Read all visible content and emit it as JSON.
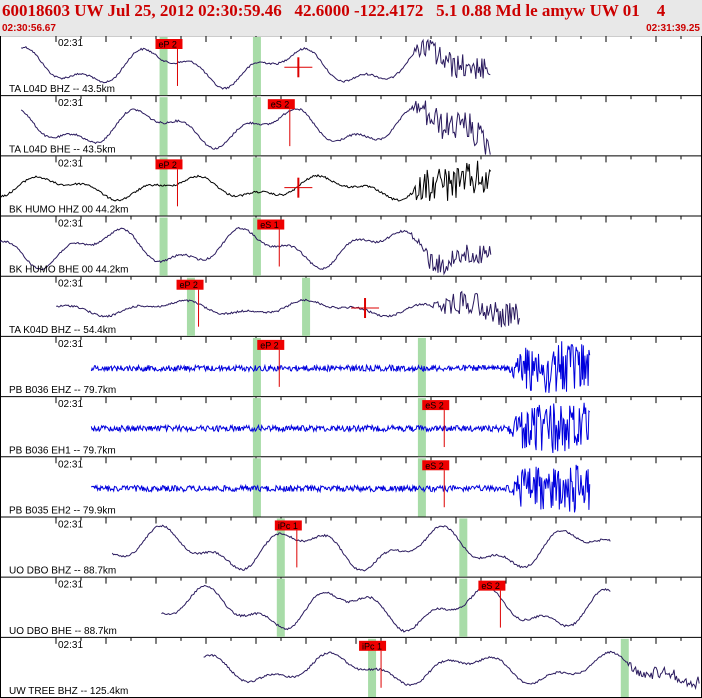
{
  "header": {
    "title": "60018603 UW Jul 25, 2012 02:30:59.46   42.6000 -122.4172   5.1 0.88 Md le amyw UW 01    4",
    "start_time": "02:30:56.67",
    "end_time": "02:31:39.25"
  },
  "colors": {
    "header_bg": "#e8e8e8",
    "header_text": "#cc0000",
    "pick_box": "#ee0000",
    "pick_line": "#dd0000",
    "window_band": "#a8dca8",
    "trace_purple": "#2a1a5e",
    "trace_black": "#000000",
    "trace_blue": "#0000dd",
    "grid": "#000000"
  },
  "chart_data": {
    "type": "line",
    "description": "Seismogram record section: 11 traces versus time",
    "x_unit": "time (02:30:56.67 – 02:31:39.25)",
    "time_tick_label": "02:31",
    "traces": [
      {
        "label": "TA L04D BHZ -- 43.5km",
        "color": "purple",
        "style": "lowfreq",
        "amp": 20,
        "signal_start": 0.03,
        "signal_end": 0.7,
        "noise_start": 0.58,
        "noise_amp": 14,
        "picks": [
          {
            "label": "eP 2",
            "t": 0.24
          }
        ],
        "bands": [
          0.233,
          0.366
        ],
        "extra_marker": 0.425
      },
      {
        "label": "TA L04D BHE -- 43.5km",
        "color": "purple",
        "style": "lowfreq",
        "amp": 20,
        "signal_start": 0.03,
        "signal_end": 0.7,
        "noise_start": 0.58,
        "noise_amp": 16,
        "picks": [
          {
            "label": "eS 2",
            "t": 0.4
          }
        ],
        "bands": [
          0.233,
          0.366
        ]
      },
      {
        "label": "BK HUMO HHZ 00 44.2km",
        "color": "black",
        "style": "lowfreq",
        "amp": 12,
        "signal_start": 0.0,
        "signal_end": 0.7,
        "noise_start": 0.58,
        "noise_amp": 20,
        "picks": [
          {
            "label": "eP 2",
            "t": 0.24
          }
        ],
        "bands": [
          0.233,
          0.366
        ],
        "extra_marker": 0.425
      },
      {
        "label": "BK HUMO BHE 00 44.2km",
        "color": "purple",
        "style": "lowfreq",
        "amp": 20,
        "signal_start": 0.0,
        "signal_end": 0.7,
        "noise_start": 0.58,
        "noise_amp": 12,
        "picks": [
          {
            "label": "eS 1",
            "t": 0.385
          }
        ],
        "bands": [
          0.233,
          0.366
        ]
      },
      {
        "label": "TA K04D BHZ -- 54.4km",
        "color": "purple",
        "style": "lowfreq",
        "amp": 8,
        "signal_start": 0.08,
        "signal_end": 0.74,
        "noise_start": 0.61,
        "noise_amp": 14,
        "picks": [
          {
            "label": "eP 2",
            "t": 0.27
          }
        ],
        "bands": [
          0.272,
          0.436
        ],
        "extra_marker": 0.52
      },
      {
        "label": "PB B036 EHZ -- 79.7km",
        "color": "blue",
        "style": "highfreq",
        "amp": 3,
        "signal_start": 0.13,
        "signal_end": 0.84,
        "noise_start": 0.72,
        "noise_amp": 26,
        "picks": [
          {
            "label": "eP 2",
            "t": 0.385
          }
        ],
        "bands": [
          0.366,
          0.601
        ]
      },
      {
        "label": "PB B036 EH1 -- 79.7km",
        "color": "blue",
        "style": "highfreq",
        "amp": 3,
        "signal_start": 0.13,
        "signal_end": 0.84,
        "noise_start": 0.72,
        "noise_amp": 26,
        "picks": [
          {
            "label": "eS 2",
            "t": 0.62
          }
        ],
        "bands": [
          0.366,
          0.601
        ]
      },
      {
        "label": "PB B035 EH2 -- 79.9km",
        "color": "blue",
        "style": "highfreq",
        "amp": 3,
        "signal_start": 0.13,
        "signal_end": 0.84,
        "noise_start": 0.72,
        "noise_amp": 24,
        "picks": [
          {
            "label": "eS 2",
            "t": 0.62
          }
        ],
        "bands": [
          0.366,
          0.601
        ]
      },
      {
        "label": "UO DBO BHZ -- 88.7km",
        "color": "purple",
        "style": "lowfreq",
        "amp": 22,
        "signal_start": 0.16,
        "signal_end": 0.87,
        "noise_start": 2.0,
        "noise_amp": 0,
        "picks": [
          {
            "label": "iPc 1",
            "t": 0.41
          }
        ],
        "bands": [
          0.4,
          0.66
        ]
      },
      {
        "label": "UO DBO BHE -- 88.7km",
        "color": "purple",
        "style": "lowfreq",
        "amp": 22,
        "signal_start": 0.23,
        "signal_end": 0.87,
        "noise_start": 2.0,
        "noise_amp": 0,
        "picks": [
          {
            "label": "eS 2",
            "t": 0.7
          }
        ],
        "bands": [
          0.4,
          0.66
        ]
      },
      {
        "label": "UW TREE BHZ -- 125.4km",
        "color": "purple",
        "style": "lowfreq",
        "amp": 16,
        "signal_start": 0.29,
        "signal_end": 1.0,
        "noise_start": 0.88,
        "noise_amp": 6,
        "picks": [
          {
            "label": "iPc 1",
            "t": 0.53
          }
        ],
        "bands": [
          0.53,
          0.89
        ]
      }
    ]
  }
}
